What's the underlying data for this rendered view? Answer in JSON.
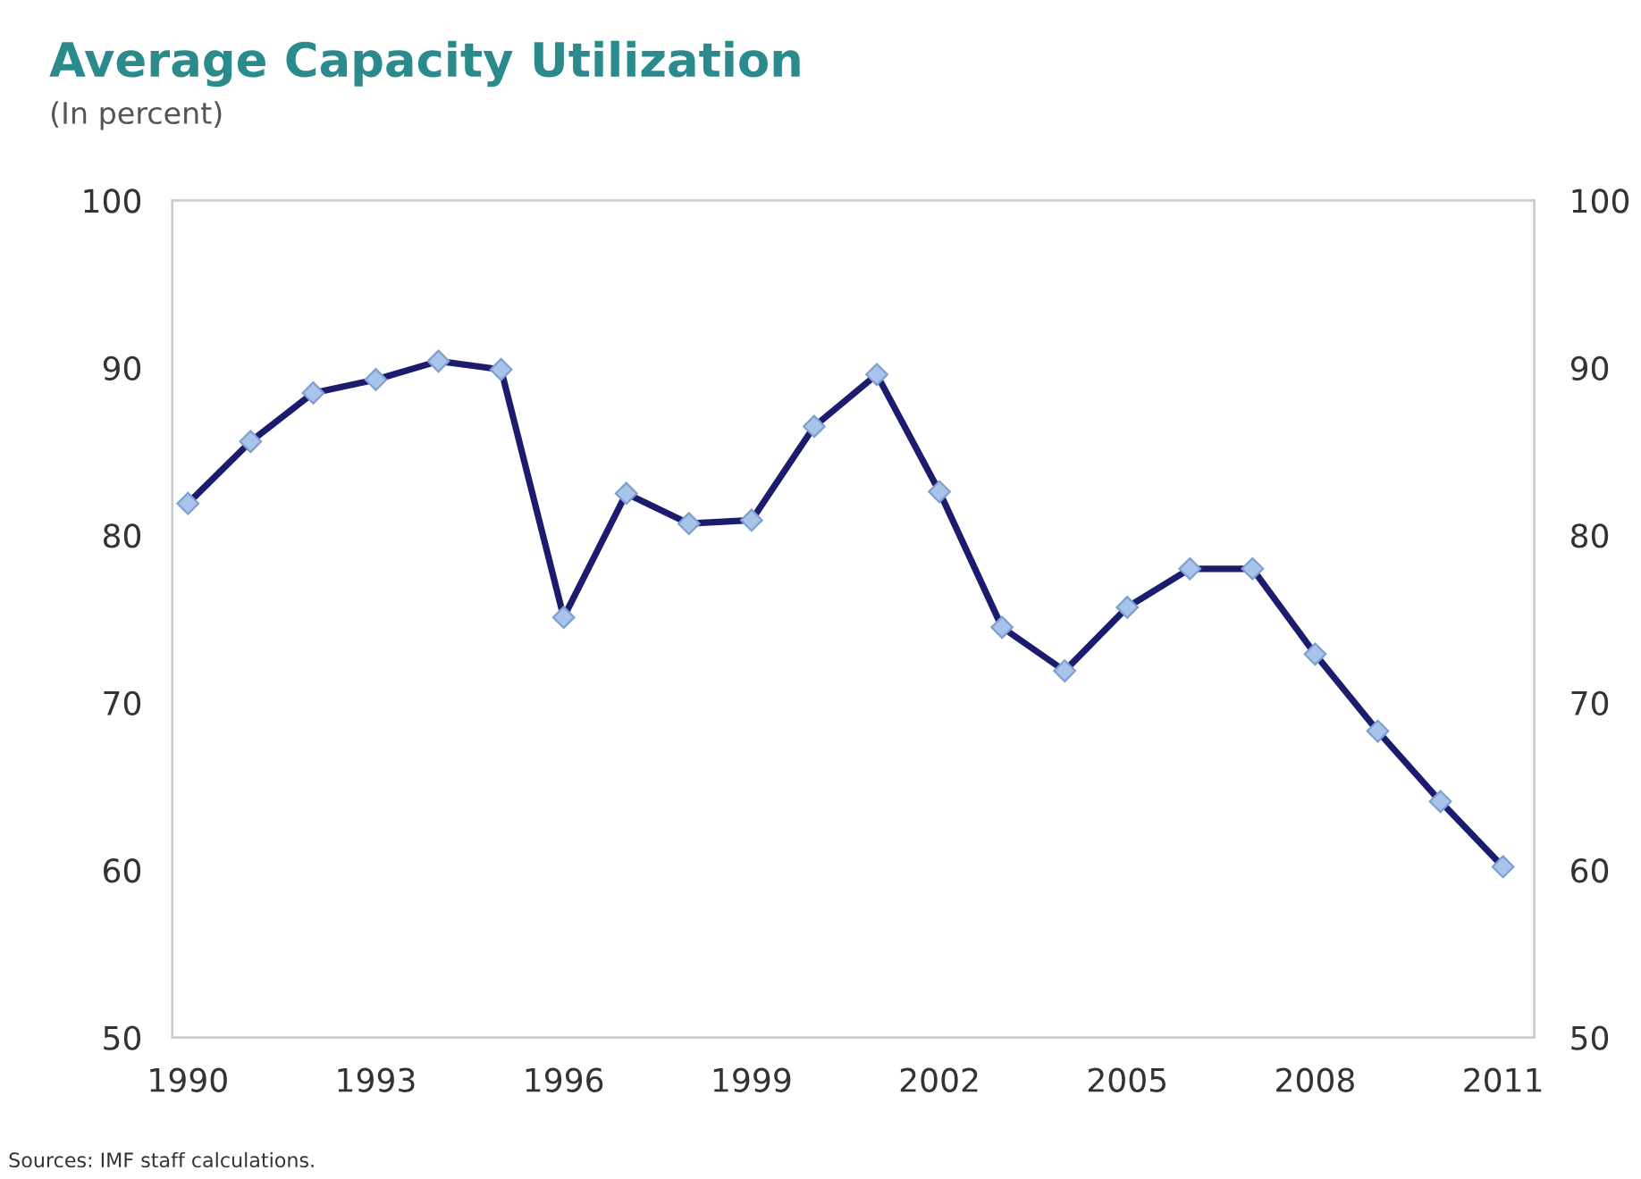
{
  "chart_data": {
    "type": "line",
    "title": "Average Capacity Utilization",
    "subtitle": "(In percent)",
    "annotations": [
      "Sources: IMF staff calculations."
    ],
    "x": [
      1990,
      1991,
      1992,
      1993,
      1994,
      1995,
      1996,
      1997,
      1998,
      1999,
      2000,
      2001,
      2002,
      2003,
      2004,
      2005,
      2006,
      2007,
      2008,
      2009,
      2010,
      2011
    ],
    "series": [
      {
        "color": "#1c1c6e",
        "values": [
          81.9,
          85.6,
          88.5,
          89.3,
          90.4,
          89.9,
          75.1,
          82.5,
          80.7,
          80.9,
          86.5,
          89.6,
          82.6,
          74.5,
          71.9,
          75.7,
          78.0,
          78.0,
          72.9,
          68.3,
          64.1,
          60.2
        ]
      }
    ],
    "marker": "diamond",
    "line_style": "solid",
    "grid": false,
    "xlim": [
      1989.75,
      2011.5
    ],
    "xticks": [
      1990,
      1993,
      1996,
      1999,
      2002,
      2005,
      2008,
      2011
    ],
    "ylim": [
      50,
      100
    ],
    "yticks": [
      50,
      60,
      70,
      80,
      90,
      100
    ],
    "y2lim": [
      50,
      100
    ],
    "y2ticks": [
      50,
      60,
      70,
      80,
      90,
      100
    ]
  }
}
